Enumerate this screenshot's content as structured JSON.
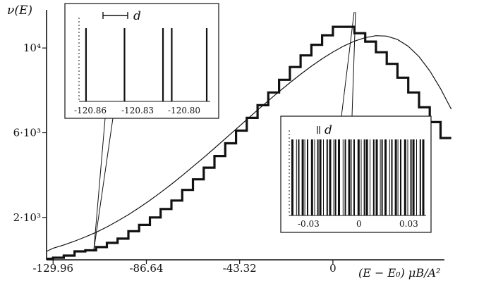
{
  "chart_data": {
    "type": "line",
    "xlabel": "(E − E₀) μB/A²",
    "ylabel": "ν(E)",
    "x_ticks": [
      {
        "value": -129.96,
        "label": "-129.96"
      },
      {
        "value": -86.64,
        "label": "-86.64"
      },
      {
        "value": -43.32,
        "label": "-43.32"
      },
      {
        "value": 0,
        "label": "0"
      }
    ],
    "y_ticks": [
      {
        "value": 2000,
        "label": "2·10³"
      },
      {
        "value": 6000,
        "label": "6·10³"
      },
      {
        "value": 10000,
        "label": "10⁴"
      }
    ],
    "xlim": [
      -133,
      60
    ],
    "ylim": [
      0,
      11800
    ],
    "series": [
      {
        "style": "staircase",
        "comment": "thick step curve",
        "x": [
          -135,
          -130,
          -125,
          -120,
          -115,
          -110,
          -105,
          -100,
          -95,
          -90,
          -85,
          -80,
          -75,
          -70,
          -65,
          -60,
          -55,
          -50,
          -45,
          -40,
          -35,
          -30,
          -25,
          -20,
          -15,
          -10,
          -5,
          0,
          5,
          10,
          15,
          20,
          25,
          30,
          35,
          40,
          45,
          50
        ],
        "y": [
          50,
          100,
          200,
          400,
          450,
          600,
          800,
          1000,
          1350,
          1650,
          2000,
          2400,
          2800,
          3300,
          3800,
          4350,
          4900,
          5500,
          6100,
          6700,
          7300,
          7900,
          8500,
          9100,
          9650,
          10150,
          10600,
          11000,
          11000,
          10700,
          10300,
          9800,
          9250,
          8600,
          7900,
          7200,
          6500,
          5750
        ]
      },
      {
        "style": "smooth",
        "comment": "thin continuous curve",
        "x": [
          -135,
          -130,
          -125,
          -120,
          -115,
          -110,
          -105,
          -100,
          -95,
          -90,
          -85,
          -80,
          -75,
          -70,
          -65,
          -60,
          -55,
          -50,
          -45,
          -40,
          -35,
          -30,
          -25,
          -20,
          -15,
          -10,
          -5,
          0,
          5,
          10,
          15,
          20,
          25,
          30,
          35,
          40,
          45,
          50,
          55
        ],
        "y": [
          400,
          550,
          700,
          880,
          1080,
          1300,
          1550,
          1830,
          2130,
          2460,
          2810,
          3180,
          3570,
          3980,
          4400,
          4830,
          5270,
          5720,
          6170,
          6620,
          7070,
          7510,
          7940,
          8360,
          8760,
          9140,
          9490,
          9810,
          10090,
          10320,
          10490,
          10580,
          10560,
          10400,
          10080,
          9590,
          8920,
          8080,
          7110
        ]
      }
    ],
    "insets": [
      {
        "name": "left-inset",
        "scale_label": "d",
        "tick_labels": [
          "-120.86",
          "-120.83",
          "-120.80"
        ],
        "xlim": [
          -120.87,
          -120.795
        ],
        "lines": [
          -120.866,
          -120.844,
          -120.822,
          -120.817,
          -120.797
        ]
      },
      {
        "name": "right-inset",
        "scale_label": "d",
        "tick_labels": [
          "-0.03",
          "0",
          "0.03"
        ],
        "xlim": [
          -0.044,
          0.044
        ]
      }
    ]
  }
}
